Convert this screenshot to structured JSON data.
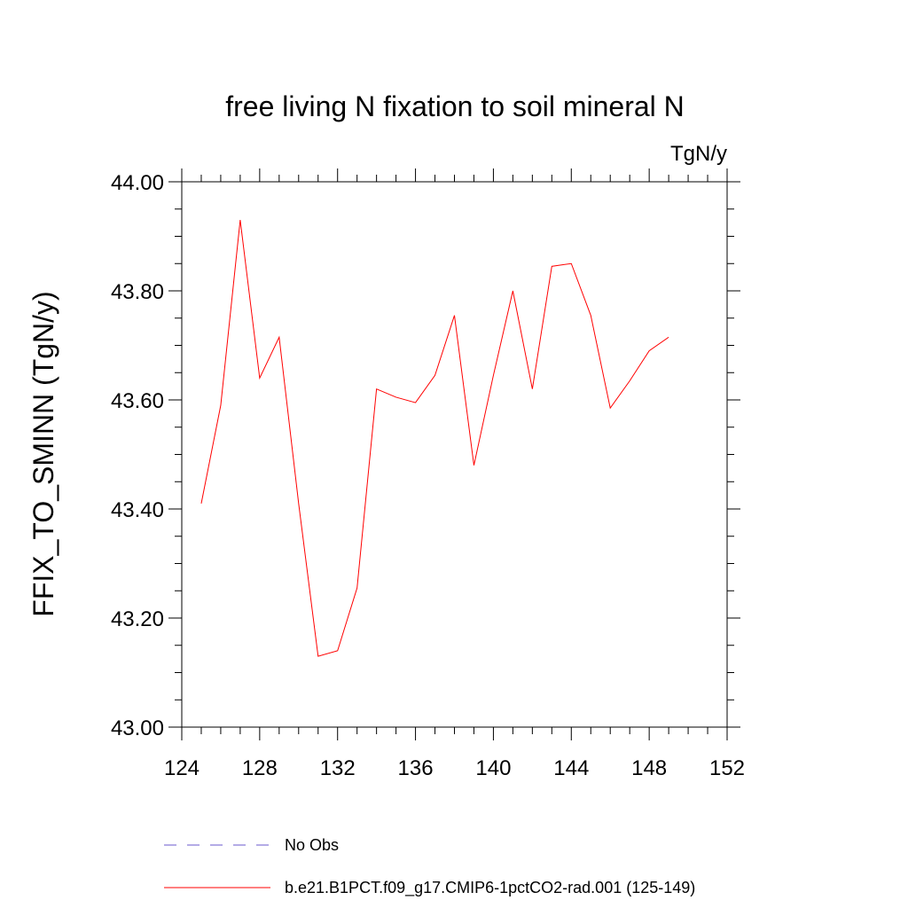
{
  "chart_data": {
    "type": "line",
    "title": "free living N fixation to soil mineral N",
    "units_label": "TgN/y",
    "xlabel": "",
    "ylabel": "FFIX_TO_SMINN  (TgN/y)",
    "xlim": [
      124,
      152
    ],
    "ylim": [
      43.0,
      44.0
    ],
    "x_ticks": [
      "124",
      "128",
      "132",
      "136",
      "140",
      "144",
      "148",
      "152"
    ],
    "y_ticks": [
      "43.00",
      "43.20",
      "43.40",
      "43.60",
      "43.80",
      "44.00"
    ],
    "grid": false,
    "legend_position": "bottom",
    "series": [
      {
        "name": "No Obs",
        "color": "#6a5acd",
        "dash": "dashed",
        "x": [],
        "y": []
      },
      {
        "name": "b.e21.B1PCT.f09_g17.CMIP6-1pctCO2-rad.001 (125-149)",
        "color": "#ff0000",
        "dash": "solid",
        "x": [
          125,
          126,
          127,
          128,
          129,
          130,
          131,
          132,
          133,
          134,
          135,
          136,
          137,
          138,
          139,
          140,
          141,
          142,
          143,
          144,
          145,
          146,
          147,
          148,
          149
        ],
        "y": [
          43.41,
          43.59,
          43.93,
          43.64,
          43.715,
          43.41,
          43.13,
          43.14,
          43.255,
          43.62,
          43.605,
          43.595,
          43.645,
          43.755,
          43.48,
          43.645,
          43.8,
          43.62,
          43.845,
          43.85,
          43.755,
          43.585,
          43.635,
          43.69,
          43.715
        ]
      }
    ]
  }
}
